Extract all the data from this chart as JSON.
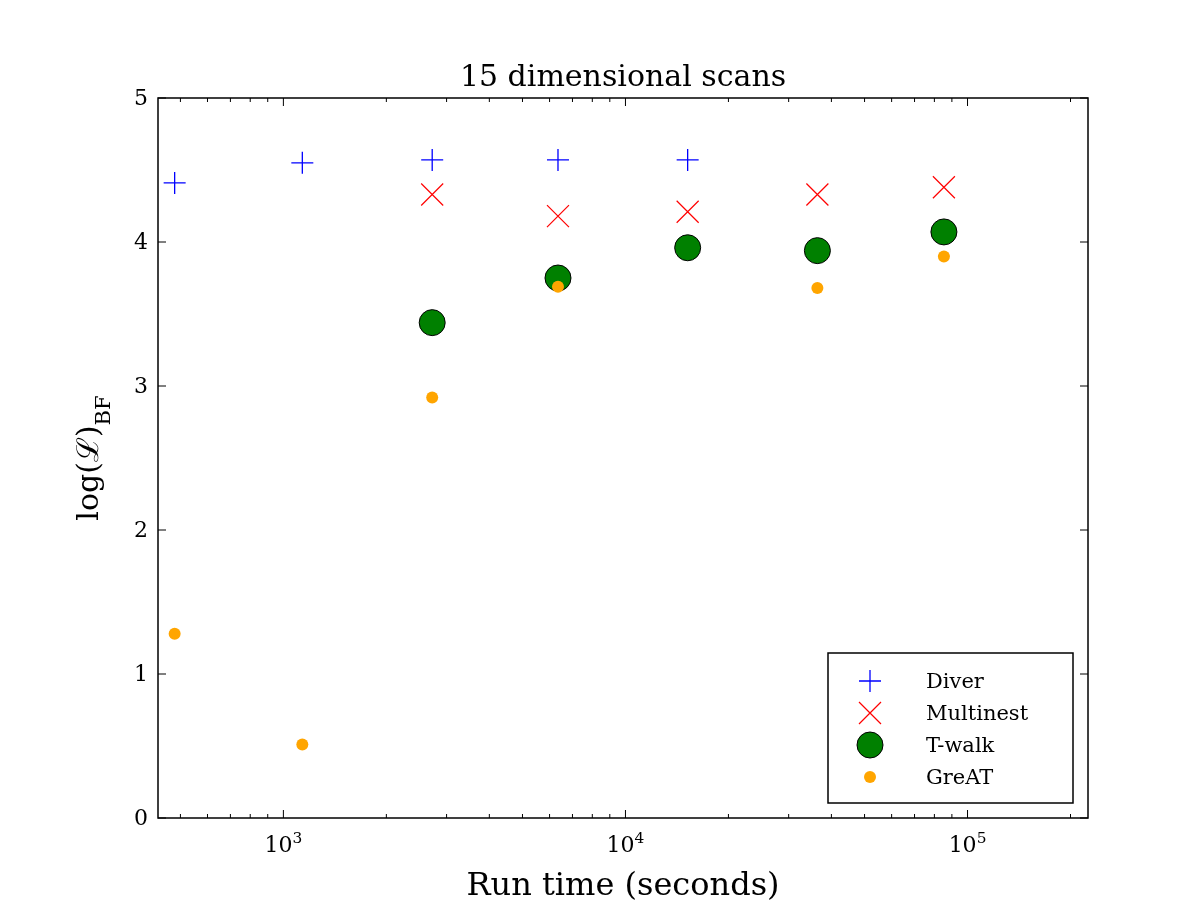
{
  "chart_data": {
    "type": "scatter",
    "title": "15 dimensional scans",
    "xlabel": "Run time (seconds)",
    "ylabel": "log(ℒ)$_{BF}$",
    "log": "x",
    "xlim": [
      430,
      225000
    ],
    "ylim": [
      0,
      5
    ],
    "xticks": [
      {
        "value": 500,
        "label": null
      },
      {
        "value": 600,
        "label": null
      },
      {
        "value": 700,
        "label": null
      },
      {
        "value": 800,
        "label": null
      },
      {
        "value": 900,
        "label": null
      },
      {
        "value": 1000,
        "label": "10$^{3}$"
      },
      {
        "value": 2000,
        "label": null
      },
      {
        "value": 3000,
        "label": null
      },
      {
        "value": 4000,
        "label": null
      },
      {
        "value": 5000,
        "label": null
      },
      {
        "value": 6000,
        "label": null
      },
      {
        "value": 7000,
        "label": null
      },
      {
        "value": 8000,
        "label": null
      },
      {
        "value": 9000,
        "label": null
      },
      {
        "value": 10000,
        "label": "10$^{4}$"
      },
      {
        "value": 20000,
        "label": null
      },
      {
        "value": 30000,
        "label": null
      },
      {
        "value": 40000,
        "label": null
      },
      {
        "value": 50000,
        "label": null
      },
      {
        "value": 60000,
        "label": null
      },
      {
        "value": 70000,
        "label": null
      },
      {
        "value": 80000,
        "label": null
      },
      {
        "value": 90000,
        "label": null
      },
      {
        "value": 100000,
        "label": "10$^{5}$"
      },
      {
        "value": 200000,
        "label": null
      }
    ],
    "yticks": [
      0,
      1,
      2,
      3,
      4,
      5
    ],
    "grid": false,
    "legend": "bottom right",
    "series": [
      {
        "name": "Diver",
        "color": "#0000ff",
        "marker": "cross",
        "x": [
          481,
          1136,
          2723,
          6350,
          15200
        ],
        "values": [
          4.41,
          4.55,
          4.57,
          4.57,
          4.57
        ]
      },
      {
        "name": "Multinest",
        "color": "#ff0000",
        "marker": "x",
        "x": [
          2723,
          6350,
          15200,
          36400,
          85300
        ],
        "values": [
          4.33,
          4.18,
          4.21,
          4.33,
          4.38
        ]
      },
      {
        "name": "T-walk",
        "color": "#008000",
        "marker": "circle",
        "x": [
          2723,
          6350,
          15200,
          36400,
          85300
        ],
        "values": [
          3.44,
          3.75,
          3.96,
          3.94,
          4.07
        ]
      },
      {
        "name": "GreAT",
        "color": "#ffa500",
        "marker": "circle",
        "x": [
          481,
          1136,
          2723,
          6350,
          36400,
          85300
        ],
        "values": [
          1.28,
          0.51,
          2.92,
          3.69,
          3.68,
          3.9
        ]
      }
    ]
  }
}
